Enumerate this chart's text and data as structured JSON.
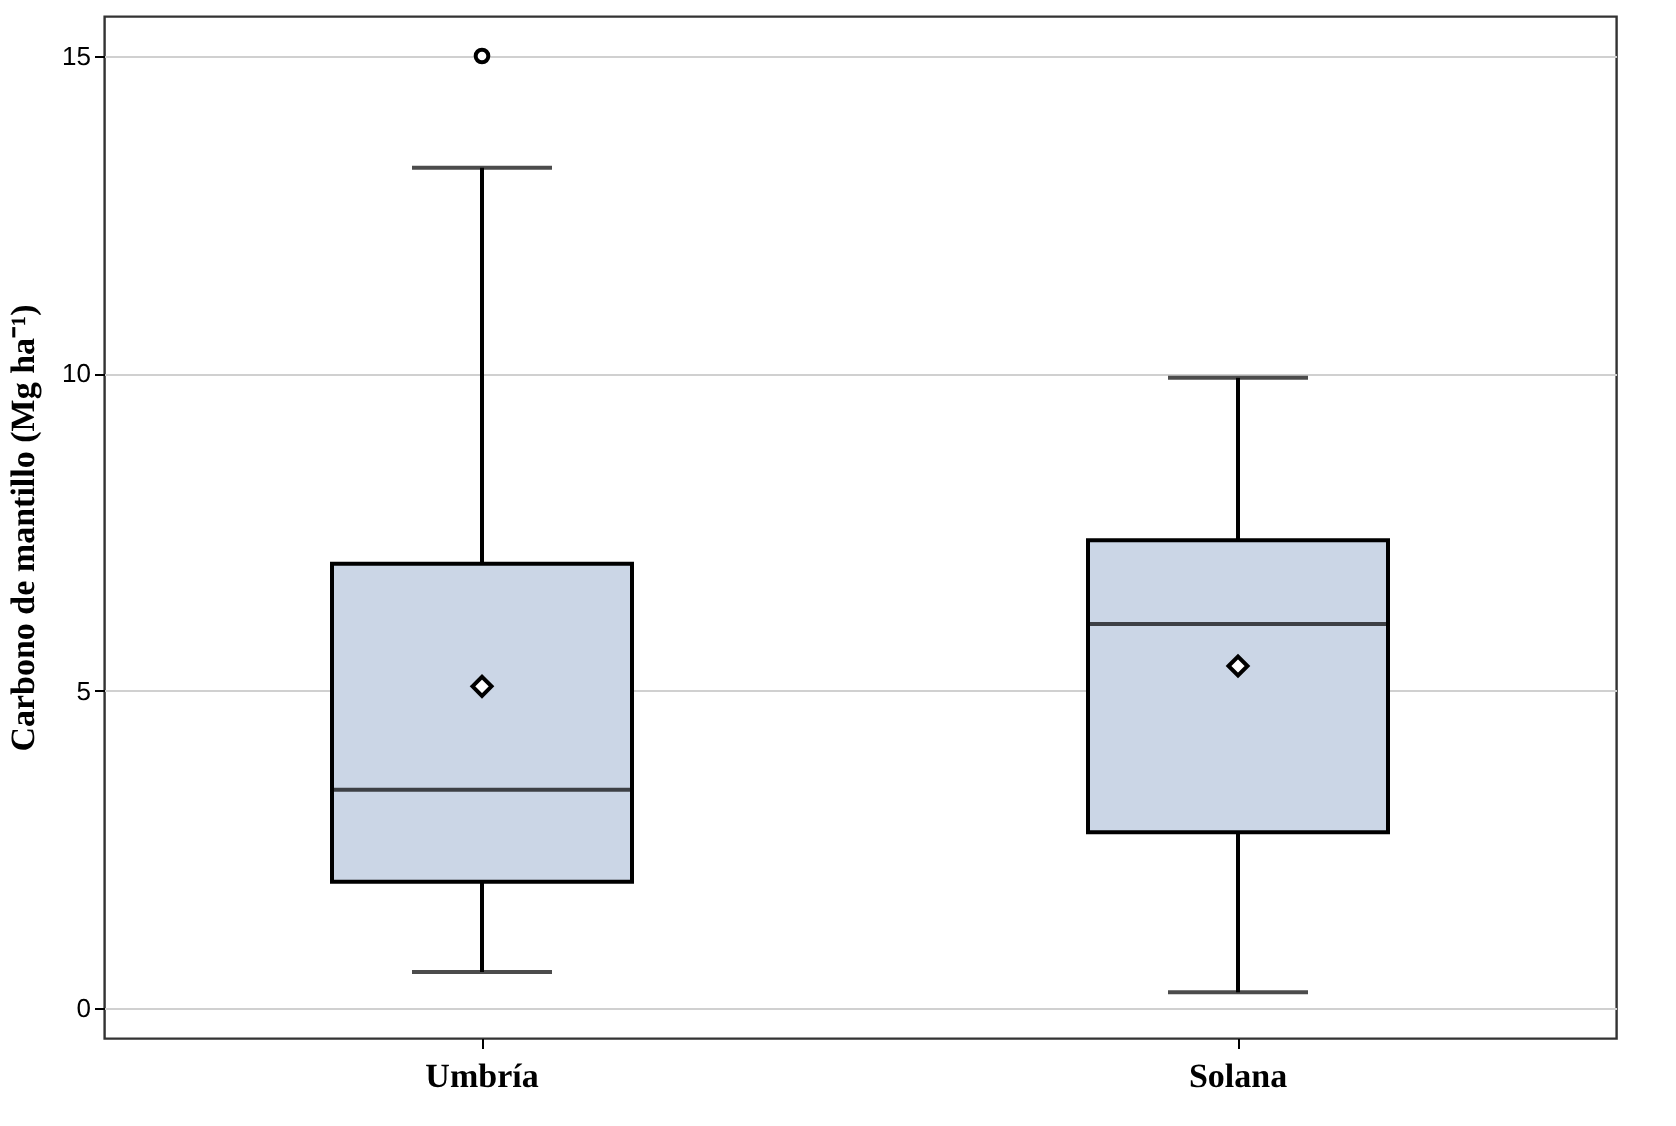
{
  "chart_data": {
    "type": "box",
    "ylabel": "Carbono de mantillo (Mg ha⁻¹)",
    "categories": [
      "Umbría",
      "Solana"
    ],
    "boxes": [
      {
        "low": 0.57,
        "q1": 1.99,
        "median": 3.44,
        "q3": 7.0,
        "high": 13.24,
        "mean": 5.07,
        "outliers": [
          15
        ]
      },
      {
        "low": 0.25,
        "q1": 2.77,
        "median": 6.05,
        "q3": 7.37,
        "high": 9.93,
        "mean": 5.39
      }
    ],
    "color": "#cbd6e6",
    "ylim": [
      -0.47,
      15.63
    ],
    "yticks": [
      0,
      5,
      10,
      15
    ],
    "grid": "y",
    "marker": "diamond"
  }
}
